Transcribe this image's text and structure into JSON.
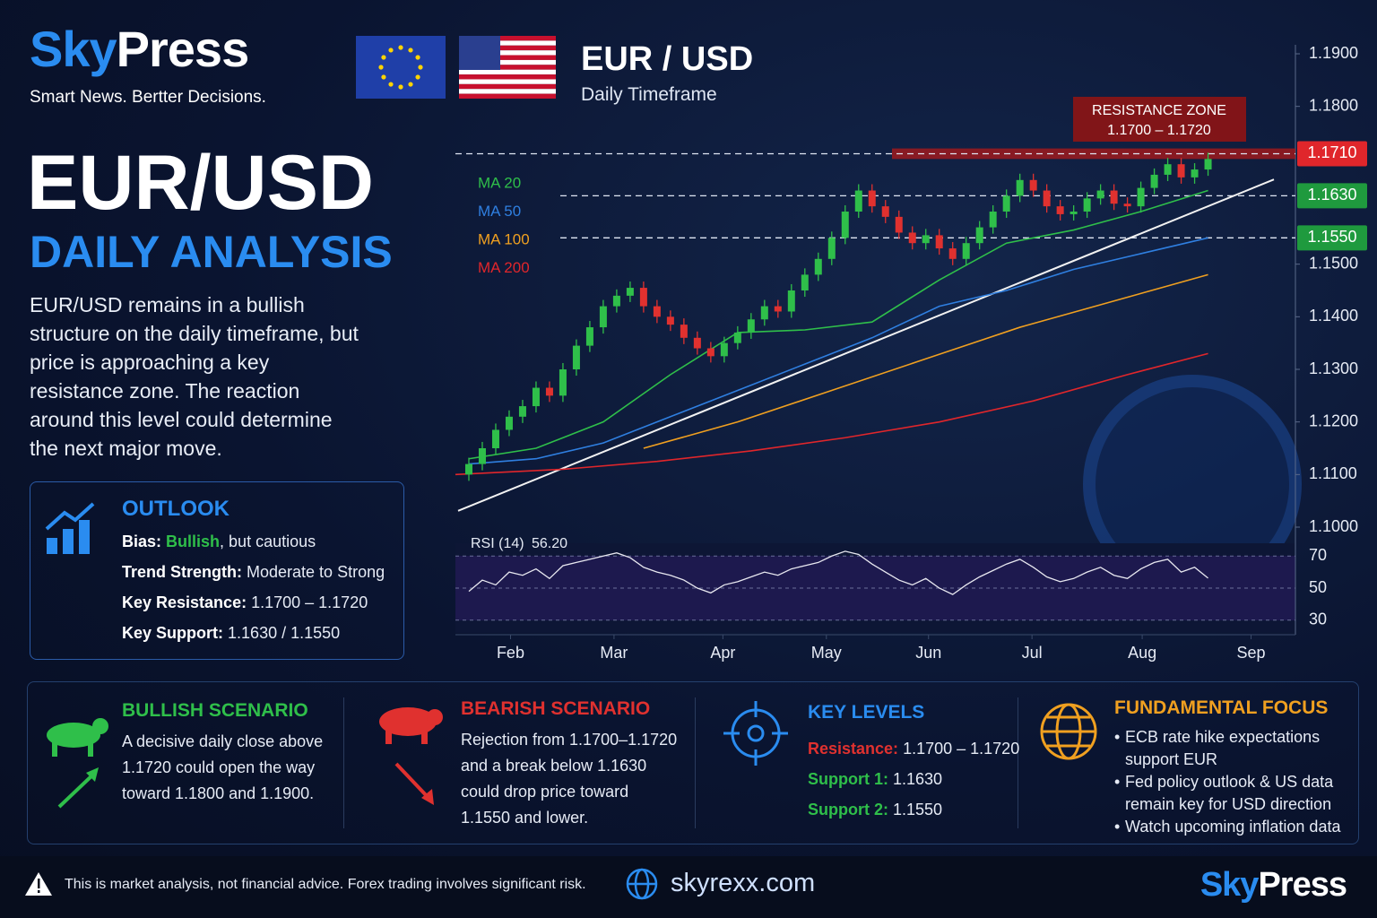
{
  "header": {
    "brand_a": "Sky",
    "brand_b": "Press",
    "tagline": "Smart News. Bertter Decisions.",
    "pair": "EUR / USD",
    "timeframe": "Daily Timeframe"
  },
  "headline": {
    "title": "EUR/USD",
    "subtitle": "DAILY ANALYSIS",
    "summary": "EUR/USD remains in a bullish structure on the daily timeframe, but price is approaching a key resistance zone. The reaction around this level could determine the next major move."
  },
  "outlook": {
    "title": "OUTLOOK",
    "rows": [
      {
        "label": "Bias:",
        "value": "Bullish",
        "note": ", but cautious"
      },
      {
        "label": "Trend Strength:",
        "value": "Moderate to Strong"
      },
      {
        "label": "Key Resistance:",
        "value": "1.1700 – 1.1720"
      },
      {
        "label": "Key Support:",
        "value": "1.1630 / 1.1550"
      }
    ]
  },
  "scenarios": [
    {
      "title": "BULLISH SCENARIO",
      "text": "A decisive daily close above 1.1720 could open the way toward 1.1800 and 1.1900."
    },
    {
      "title": "BEARISH SCENARIO",
      "text": "Rejection from 1.1700–1.1720 and a break below 1.1630 could drop price toward 1.1550 and lower."
    }
  ],
  "key_levels": {
    "title": "KEY LEVELS",
    "rows": [
      {
        "label": "Resistance:",
        "value": "1.1700 – 1.1720"
      },
      {
        "label": "Support 1:",
        "value": "1.1630"
      },
      {
        "label": "Support 2:",
        "value": "1.1550"
      }
    ]
  },
  "fundamental": {
    "title": "FUNDAMENTAL FOCUS",
    "items": [
      "ECB rate hike expectations support EUR",
      "Fed policy outlook & US data remain key for USD direction",
      "Watch upcoming inflation data"
    ]
  },
  "footer": {
    "disclaimer": "This is market analysis, not financial advice. Forex trading involves significant risk.",
    "website": "skyrexx.com",
    "brand_a": "Sky",
    "brand_b": "Press"
  },
  "chart_data": {
    "type": "candlestick",
    "up_color": "#2fbf4a",
    "down_color": "#e0312f",
    "xlim": [
      -1,
      61.5
    ],
    "xticks": [
      {
        "value": 3.1,
        "label": "Feb"
      },
      {
        "value": 10.8,
        "label": "Mar"
      },
      {
        "value": 18.9,
        "label": "Apr"
      },
      {
        "value": 26.6,
        "label": "May"
      },
      {
        "value": 34.2,
        "label": "Jun"
      },
      {
        "value": 41.9,
        "label": "Jul"
      },
      {
        "value": 50.1,
        "label": "Aug"
      },
      {
        "value": 58.2,
        "label": "Sep"
      }
    ],
    "ylim": [
      1.1,
      1.19
    ],
    "yticks": [
      {
        "value": 1.19,
        "label": "1.1900"
      },
      {
        "value": 1.18,
        "label": "1.1800"
      },
      {
        "value": 1.15,
        "label": "1.1500"
      },
      {
        "value": 1.14,
        "label": "1.1400"
      },
      {
        "value": 1.13,
        "label": "1.1300"
      },
      {
        "value": 1.12,
        "label": "1.1200"
      },
      {
        "value": 1.11,
        "label": "1.1100"
      },
      {
        "value": 1.1,
        "label": "1.1000"
      }
    ],
    "candles": {
      "x": [
        0,
        1,
        2,
        3,
        4,
        5,
        6,
        7,
        8,
        9,
        10,
        11,
        12,
        13,
        14,
        15,
        16,
        17,
        18,
        19,
        20,
        21,
        22,
        23,
        24,
        25,
        26,
        27,
        28,
        29,
        30,
        31,
        32,
        33,
        34,
        35,
        36,
        37,
        38,
        39,
        40,
        41,
        42,
        43,
        44,
        45,
        46,
        47,
        48,
        49,
        50,
        51,
        52,
        53,
        54,
        55
      ],
      "open": [
        1.11,
        1.112,
        1.115,
        1.1185,
        1.121,
        1.123,
        1.1265,
        1.125,
        1.13,
        1.1345,
        1.138,
        1.142,
        1.144,
        1.1455,
        1.142,
        1.14,
        1.1385,
        1.136,
        1.134,
        1.1325,
        1.135,
        1.137,
        1.1395,
        1.142,
        1.141,
        1.145,
        1.148,
        1.151,
        1.155,
        1.16,
        1.164,
        1.161,
        1.159,
        1.156,
        1.154,
        1.1555,
        1.153,
        1.151,
        1.154,
        1.157,
        1.16,
        1.163,
        1.166,
        1.164,
        1.161,
        1.1595,
        1.16,
        1.1625,
        1.164,
        1.1615,
        1.161,
        1.1645,
        1.167,
        1.169,
        1.1665,
        1.168
      ],
      "high": [
        1.1132,
        1.1162,
        1.1197,
        1.1222,
        1.1242,
        1.1277,
        1.1277,
        1.1312,
        1.1357,
        1.1392,
        1.1432,
        1.1452,
        1.1467,
        1.1467,
        1.1432,
        1.1412,
        1.1397,
        1.1372,
        1.1352,
        1.1362,
        1.1382,
        1.1407,
        1.1432,
        1.1432,
        1.1462,
        1.1492,
        1.1522,
        1.1562,
        1.1612,
        1.1652,
        1.1652,
        1.1622,
        1.1602,
        1.1572,
        1.1567,
        1.1567,
        1.1542,
        1.1552,
        1.1582,
        1.1612,
        1.1642,
        1.1672,
        1.1672,
        1.1652,
        1.1622,
        1.1612,
        1.1637,
        1.1652,
        1.1652,
        1.1627,
        1.1657,
        1.1682,
        1.1702,
        1.1702,
        1.1692,
        1.1712
      ],
      "low": [
        1.1088,
        1.1108,
        1.1138,
        1.1173,
        1.1198,
        1.1218,
        1.1238,
        1.1238,
        1.1288,
        1.1333,
        1.1368,
        1.1408,
        1.1428,
        1.1408,
        1.1388,
        1.1373,
        1.1348,
        1.1328,
        1.1313,
        1.1313,
        1.1338,
        1.1358,
        1.1383,
        1.1398,
        1.1398,
        1.1438,
        1.1468,
        1.1498,
        1.1538,
        1.1588,
        1.1598,
        1.1578,
        1.1548,
        1.1528,
        1.1528,
        1.1518,
        1.1498,
        1.1498,
        1.1528,
        1.1558,
        1.1588,
        1.1618,
        1.1628,
        1.1598,
        1.1583,
        1.1583,
        1.1588,
        1.1613,
        1.1603,
        1.1598,
        1.1598,
        1.1633,
        1.1658,
        1.1653,
        1.1653,
        1.1668
      ],
      "close": [
        1.112,
        1.115,
        1.1185,
        1.121,
        1.123,
        1.1265,
        1.125,
        1.13,
        1.1345,
        1.138,
        1.142,
        1.144,
        1.1455,
        1.142,
        1.14,
        1.1385,
        1.136,
        1.134,
        1.1325,
        1.135,
        1.137,
        1.1395,
        1.142,
        1.141,
        1.145,
        1.148,
        1.151,
        1.155,
        1.16,
        1.164,
        1.161,
        1.159,
        1.156,
        1.154,
        1.1555,
        1.153,
        1.151,
        1.154,
        1.157,
        1.16,
        1.163,
        1.166,
        1.164,
        1.161,
        1.1595,
        1.16,
        1.1625,
        1.164,
        1.1615,
        1.161,
        1.1645,
        1.167,
        1.169,
        1.1665,
        1.168,
        1.17
      ]
    },
    "series": [
      {
        "name": "MA 20",
        "color": "#2fbf4a",
        "x": [
          0,
          5,
          10,
          15,
          20,
          25,
          30,
          35,
          40,
          45,
          50,
          55
        ],
        "values": [
          1.113,
          1.115,
          1.12,
          1.129,
          1.137,
          1.1375,
          1.139,
          1.147,
          1.154,
          1.1565,
          1.16,
          1.164
        ]
      },
      {
        "name": "MA 50",
        "color": "#2f7fe0",
        "x": [
          0,
          5,
          10,
          15,
          20,
          25,
          30,
          35,
          40,
          45,
          50,
          55
        ],
        "values": [
          1.112,
          1.113,
          1.116,
          1.121,
          1.126,
          1.131,
          1.136,
          1.142,
          1.145,
          1.149,
          1.152,
          1.155
        ]
      },
      {
        "name": "MA 100",
        "color": "#f0a020",
        "x": [
          13,
          20,
          27,
          34,
          41,
          48,
          55
        ],
        "values": [
          1.115,
          1.12,
          1.126,
          1.132,
          1.138,
          1.143,
          1.148
        ]
      },
      {
        "name": "MA 200",
        "color": "#e0262b",
        "x": [
          -1,
          7,
          14,
          21,
          28,
          35,
          42,
          49,
          55
        ],
        "values": [
          1.11,
          1.111,
          1.1125,
          1.1145,
          1.117,
          1.12,
          1.124,
          1.129,
          1.133
        ]
      }
    ],
    "trendline": {
      "x": [
        -0.8,
        59.9
      ],
      "y": [
        1.1031,
        1.1661
      ]
    },
    "resistance_zone": {
      "title": "RESISTANCE ZONE",
      "range_label": "1.1700 – 1.1720",
      "from": 1.17,
      "to": 1.172
    },
    "levels": [
      {
        "value": 1.171,
        "label": "1.1710",
        "color": "#e0262b"
      },
      {
        "value": 1.163,
        "label": "1.1630",
        "color": "#1f9a3e"
      },
      {
        "value": 1.155,
        "label": "1.1550",
        "color": "#1f9a3e"
      }
    ],
    "rsi": {
      "title": "RSI (14)",
      "current": {
        "value": 56.2,
        "label": "56.20"
      },
      "ylim": [
        22,
        78
      ],
      "yticks": [
        70,
        50,
        30
      ],
      "values": [
        48,
        55,
        52,
        60,
        58,
        62,
        56,
        64,
        66,
        68,
        70,
        72,
        69,
        63,
        60,
        58,
        55,
        50,
        47,
        52,
        54,
        57,
        60,
        58,
        62,
        64,
        66,
        70,
        73,
        71,
        65,
        60,
        55,
        52,
        56,
        50,
        46,
        52,
        57,
        61,
        65,
        68,
        63,
        57,
        54,
        56,
        60,
        63,
        58,
        56,
        62,
        66,
        68,
        60,
        63,
        56.2
      ]
    }
  }
}
